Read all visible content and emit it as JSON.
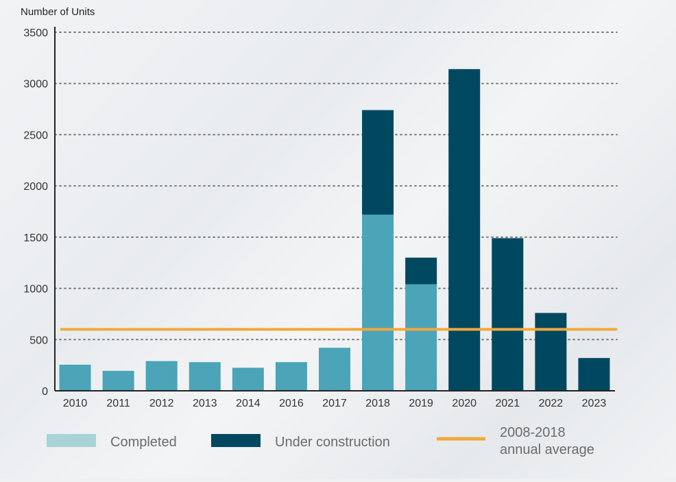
{
  "chart_data": {
    "type": "bar",
    "stacked": true,
    "ylabel": "Number of Units",
    "ylim": [
      0,
      3500
    ],
    "yticks": [
      0,
      500,
      1000,
      1500,
      2000,
      2500,
      3000,
      3500
    ],
    "grid": "dotted horizontal",
    "categories": [
      "2010",
      "2011",
      "2012",
      "2013",
      "2014",
      "2016",
      "2017",
      "2018",
      "2019",
      "2020",
      "2021",
      "2022",
      "2023"
    ],
    "series": [
      {
        "name": "Completed",
        "values": [
          255,
          195,
          290,
          280,
          225,
          280,
          420,
          1720,
          1040,
          0,
          0,
          0,
          0
        ]
      },
      {
        "name": "Under construction",
        "values": [
          0,
          0,
          0,
          0,
          0,
          0,
          0,
          1020,
          260,
          3140,
          1490,
          760,
          320
        ]
      }
    ],
    "reference_line": {
      "name": "2008-2018 annual average",
      "value": 600
    },
    "legend": {
      "position": "bottom",
      "completed_label": "Completed",
      "under_construction_label": "Under construction",
      "average_label_line1": "2008-2018",
      "average_label_line2": "annual average"
    }
  },
  "colors": {
    "completed_bar": "#4ba4b8",
    "completed_legend": "#a8d4d6",
    "under_construction": "#004860",
    "average_line": "#f0a93c",
    "axis": "#222222",
    "grid": "#7a7a7a",
    "text": "#333333",
    "legend_text": "#6b6b6b"
  }
}
